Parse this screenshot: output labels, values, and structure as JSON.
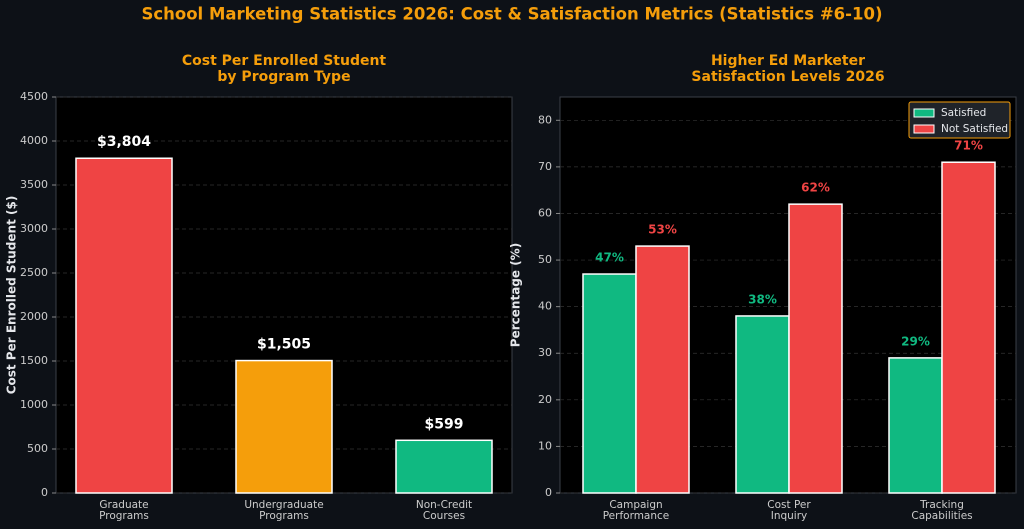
{
  "title": "School Marketing Statistics 2026: Cost & Satisfaction Metrics (Statistics #6-10)",
  "chart_data": [
    {
      "type": "bar",
      "title": "Cost Per Enrolled Student\nby Program Type",
      "ylabel": "Cost Per Enrolled Student ($)",
      "categories": [
        "Graduate\nPrograms",
        "Undergraduate\nPrograms",
        "Non-Credit\nCourses"
      ],
      "values": [
        3804,
        1505,
        599
      ],
      "value_labels": [
        "$3,804",
        "$1,505",
        "$599"
      ],
      "colors": [
        "#ef4444",
        "#f59e0b",
        "#10b981"
      ],
      "ylim": [
        0,
        4500
      ],
      "yticks": [
        0,
        500,
        1000,
        1500,
        2000,
        2500,
        3000,
        3500,
        4000,
        4500
      ],
      "grid": true
    },
    {
      "type": "grouped_bar",
      "title": "Higher Ed Marketer\nSatisfaction Levels 2026",
      "ylabel": "Percentage (%)",
      "categories": [
        "Campaign\nPerformance",
        "Cost Per\nInquiry",
        "Tracking\nCapabilities"
      ],
      "series": [
        {
          "name": "Satisfied",
          "color": "#10b981",
          "values": [
            47,
            38,
            29
          ],
          "value_labels": [
            "47%",
            "38%",
            "29%"
          ]
        },
        {
          "name": "Not Satisfied",
          "color": "#ef4444",
          "values": [
            53,
            62,
            71
          ],
          "value_labels": [
            "53%",
            "62%",
            "71%"
          ]
        }
      ],
      "ylim": [
        0,
        85
      ],
      "yticks": [
        0,
        10,
        20,
        30,
        40,
        50,
        60,
        70,
        80
      ],
      "grid": true,
      "legend": "upper right"
    }
  ]
}
